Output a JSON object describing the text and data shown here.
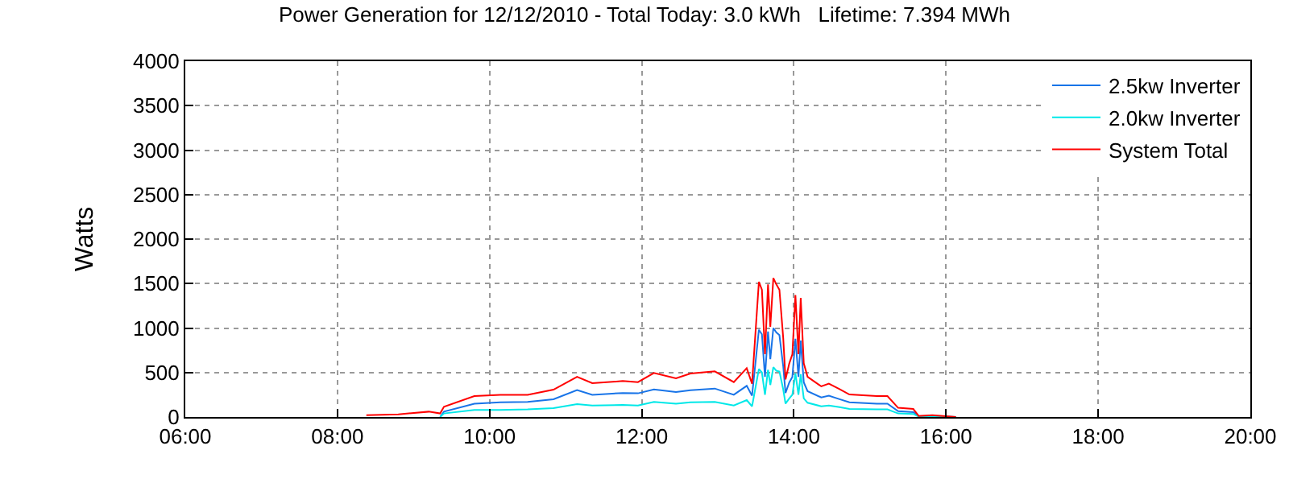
{
  "chart_data": {
    "type": "line",
    "title": "Power Generation for 12/12/2010 - Total Today: 3.0 kWh   Lifetime: 7.394 MWh",
    "ylabel": "Watts",
    "x": [
      8.38,
      8.8,
      9.2,
      9.35,
      9.4,
      9.8,
      10.14,
      10.5,
      10.84,
      11.15,
      11.35,
      11.75,
      11.95,
      12.16,
      12.45,
      12.64,
      12.96,
      13.21,
      13.38,
      13.45,
      13.54,
      13.58,
      13.62,
      13.66,
      13.69,
      13.73,
      13.77,
      13.81,
      13.86,
      13.89,
      13.94,
      13.98,
      14.02,
      14.06,
      14.09,
      14.13,
      14.18,
      14.36,
      14.46,
      14.6,
      14.73,
      15.09,
      15.23,
      15.37,
      15.57,
      15.64,
      15.82,
      16.13
    ],
    "series": [
      {
        "name": "2.5kw Inverter",
        "color": "#1874e8",
        "values": [
          null,
          null,
          null,
          0,
          60,
          150,
          165,
          170,
          200,
          302,
          250,
          270,
          266,
          310,
          280,
          300,
          320,
          250,
          350,
          240,
          980,
          930,
          450,
          960,
          650,
          1000,
          950,
          920,
          570,
          270,
          390,
          450,
          880,
          450,
          860,
          390,
          290,
          220,
          240,
          200,
          165,
          150,
          150,
          65,
          55,
          8,
          12,
          0
        ]
      },
      {
        "name": "2.0kw Inverter",
        "color": "#00e8e8",
        "values": [
          null,
          null,
          null,
          0,
          40,
          80,
          80,
          85,
          100,
          145,
          130,
          135,
          130,
          170,
          150,
          165,
          170,
          130,
          190,
          120,
          540,
          500,
          250,
          530,
          360,
          560,
          520,
          510,
          310,
          150,
          210,
          250,
          490,
          250,
          480,
          210,
          160,
          120,
          130,
          110,
          90,
          85,
          85,
          40,
          35,
          4,
          8,
          0
        ]
      },
      {
        "name": "System Total",
        "color": "#ff0000",
        "values": [
          20,
          30,
          60,
          40,
          115,
          235,
          250,
          248,
          307,
          452,
          380,
          404,
          392,
          495,
          434,
          489,
          513,
          392,
          549,
          374,
          1520,
          1430,
          706,
          1490,
          1013,
          1562,
          1490,
          1430,
          887,
          422,
          603,
          706,
          1370,
          706,
          1340,
          603,
          452,
          344,
          374,
          313,
          253,
          235,
          235,
          103,
          90,
          12,
          20,
          0
        ]
      }
    ],
    "xlim": [
      6,
      20
    ],
    "xticks": [
      {
        "value": 6,
        "label": "06:00"
      },
      {
        "value": 8,
        "label": "08:00"
      },
      {
        "value": 10,
        "label": "10:00"
      },
      {
        "value": 12,
        "label": "12:00"
      },
      {
        "value": 14,
        "label": "14:00"
      },
      {
        "value": 16,
        "label": "16:00"
      },
      {
        "value": 18,
        "label": "18:00"
      },
      {
        "value": 20,
        "label": "20:00"
      }
    ],
    "ylim": [
      0,
      4000
    ],
    "yticks": [
      0,
      500,
      1000,
      1500,
      2000,
      2500,
      3000,
      3500,
      4000
    ],
    "grid": true,
    "legend": "top right",
    "marker": "none",
    "line_style": "solid"
  }
}
